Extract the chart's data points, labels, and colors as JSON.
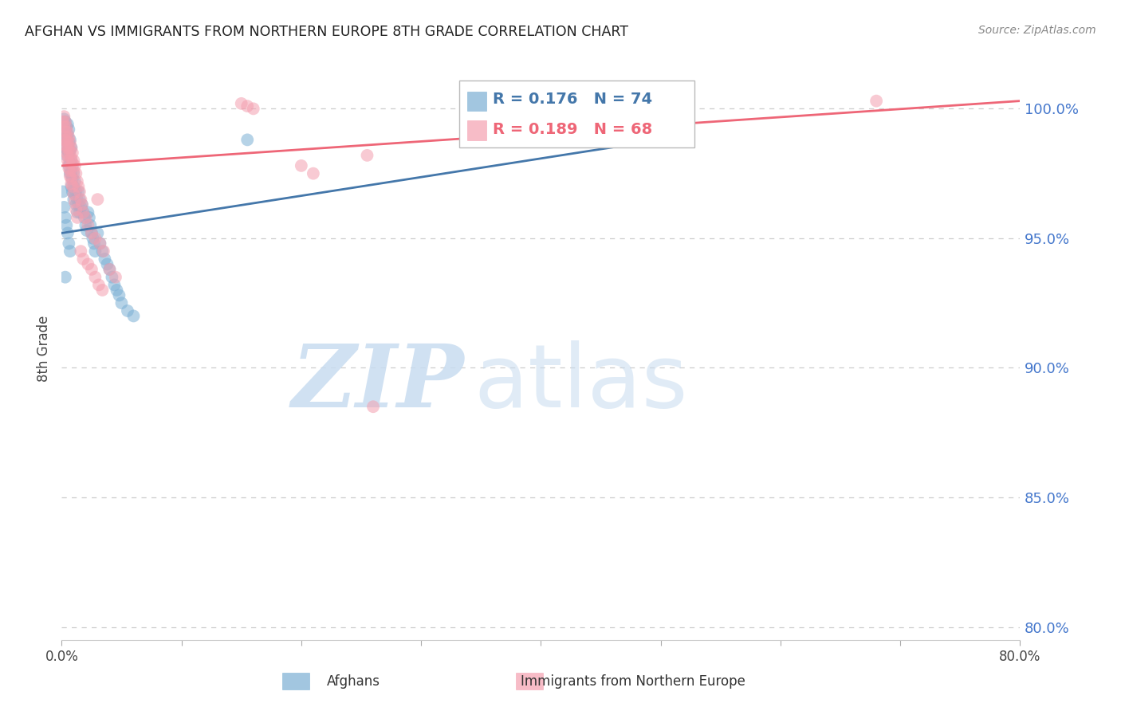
{
  "title": "AFGHAN VS IMMIGRANTS FROM NORTHERN EUROPE 8TH GRADE CORRELATION CHART",
  "source": "Source: ZipAtlas.com",
  "ylabel": "8th Grade",
  "yticks": [
    80.0,
    85.0,
    90.0,
    95.0,
    100.0
  ],
  "ytick_labels": [
    "80.0%",
    "85.0%",
    "90.0%",
    "95.0%",
    "100.0%"
  ],
  "xlim": [
    0.0,
    0.8
  ],
  "ylim": [
    79.5,
    102.0
  ],
  "blue_R": 0.176,
  "blue_N": 74,
  "pink_R": 0.189,
  "pink_N": 68,
  "blue_color": "#7BAFD4",
  "pink_color": "#F4A0B0",
  "blue_line_color": "#4477AA",
  "pink_line_color": "#EE6677",
  "title_color": "#222222",
  "axis_label_color": "#444444",
  "ytick_color": "#4477CC",
  "grid_color": "#CCCCCC",
  "blue_scatter_x": [
    0.001,
    0.002,
    0.002,
    0.003,
    0.003,
    0.003,
    0.004,
    0.004,
    0.004,
    0.005,
    0.005,
    0.005,
    0.006,
    0.006,
    0.006,
    0.006,
    0.007,
    0.007,
    0.007,
    0.007,
    0.008,
    0.008,
    0.008,
    0.008,
    0.009,
    0.009,
    0.009,
    0.01,
    0.01,
    0.01,
    0.011,
    0.011,
    0.012,
    0.012,
    0.013,
    0.013,
    0.014,
    0.014,
    0.015,
    0.015,
    0.016,
    0.017,
    0.018,
    0.019,
    0.02,
    0.021,
    0.022,
    0.023,
    0.024,
    0.025,
    0.026,
    0.027,
    0.028,
    0.03,
    0.032,
    0.034,
    0.036,
    0.038,
    0.04,
    0.042,
    0.044,
    0.046,
    0.048,
    0.05,
    0.055,
    0.06,
    0.002,
    0.003,
    0.004,
    0.005,
    0.006,
    0.007,
    0.155,
    0.003
  ],
  "blue_scatter_y": [
    96.8,
    99.6,
    98.8,
    99.5,
    99.2,
    98.5,
    99.3,
    98.9,
    98.2,
    99.4,
    99.0,
    98.4,
    99.2,
    98.7,
    98.3,
    97.8,
    98.8,
    98.4,
    97.9,
    97.5,
    98.5,
    98.0,
    97.5,
    97.0,
    97.8,
    97.3,
    96.8,
    97.5,
    97.0,
    96.5,
    97.2,
    96.7,
    96.8,
    96.3,
    96.5,
    96.0,
    96.8,
    96.3,
    96.5,
    96.0,
    96.2,
    96.3,
    96.0,
    95.8,
    95.5,
    95.3,
    96.0,
    95.8,
    95.5,
    95.2,
    95.0,
    94.8,
    94.5,
    95.2,
    94.8,
    94.5,
    94.2,
    94.0,
    93.8,
    93.5,
    93.2,
    93.0,
    92.8,
    92.5,
    92.2,
    92.0,
    96.2,
    95.8,
    95.5,
    95.2,
    94.8,
    94.5,
    98.8,
    93.5
  ],
  "pink_scatter_x": [
    0.001,
    0.002,
    0.002,
    0.003,
    0.003,
    0.004,
    0.004,
    0.005,
    0.005,
    0.006,
    0.006,
    0.007,
    0.007,
    0.008,
    0.008,
    0.009,
    0.009,
    0.01,
    0.01,
    0.011,
    0.012,
    0.013,
    0.014,
    0.015,
    0.016,
    0.017,
    0.018,
    0.02,
    0.022,
    0.025,
    0.028,
    0.03,
    0.032,
    0.035,
    0.04,
    0.045,
    0.003,
    0.004,
    0.005,
    0.006,
    0.007,
    0.008,
    0.009,
    0.01,
    0.011,
    0.012,
    0.013,
    0.003,
    0.004,
    0.005,
    0.006,
    0.007,
    0.008,
    0.15,
    0.155,
    0.16,
    0.68,
    0.022,
    0.025,
    0.028,
    0.031,
    0.034,
    0.016,
    0.018,
    0.2,
    0.21,
    0.255,
    0.26
  ],
  "pink_scatter_y": [
    99.5,
    99.7,
    99.3,
    99.5,
    99.1,
    99.3,
    98.9,
    99.1,
    98.7,
    98.9,
    98.5,
    98.7,
    98.3,
    98.5,
    98.1,
    98.3,
    97.9,
    98.0,
    97.6,
    97.8,
    97.5,
    97.2,
    97.0,
    96.8,
    96.5,
    96.3,
    96.0,
    95.8,
    95.5,
    95.2,
    95.0,
    96.5,
    94.8,
    94.5,
    93.8,
    93.5,
    98.8,
    98.5,
    98.2,
    97.9,
    97.6,
    97.3,
    97.0,
    96.7,
    96.4,
    96.1,
    95.8,
    98.6,
    98.3,
    98.0,
    97.7,
    97.4,
    97.1,
    100.2,
    100.1,
    100.0,
    100.3,
    94.0,
    93.8,
    93.5,
    93.2,
    93.0,
    94.5,
    94.2,
    97.8,
    97.5,
    98.2,
    88.5
  ],
  "blue_trendline_x": [
    0.0,
    0.5
  ],
  "blue_trendline_y": [
    95.2,
    98.8
  ],
  "pink_trendline_x": [
    0.0,
    0.8
  ],
  "pink_trendline_y": [
    97.8,
    100.3
  ]
}
